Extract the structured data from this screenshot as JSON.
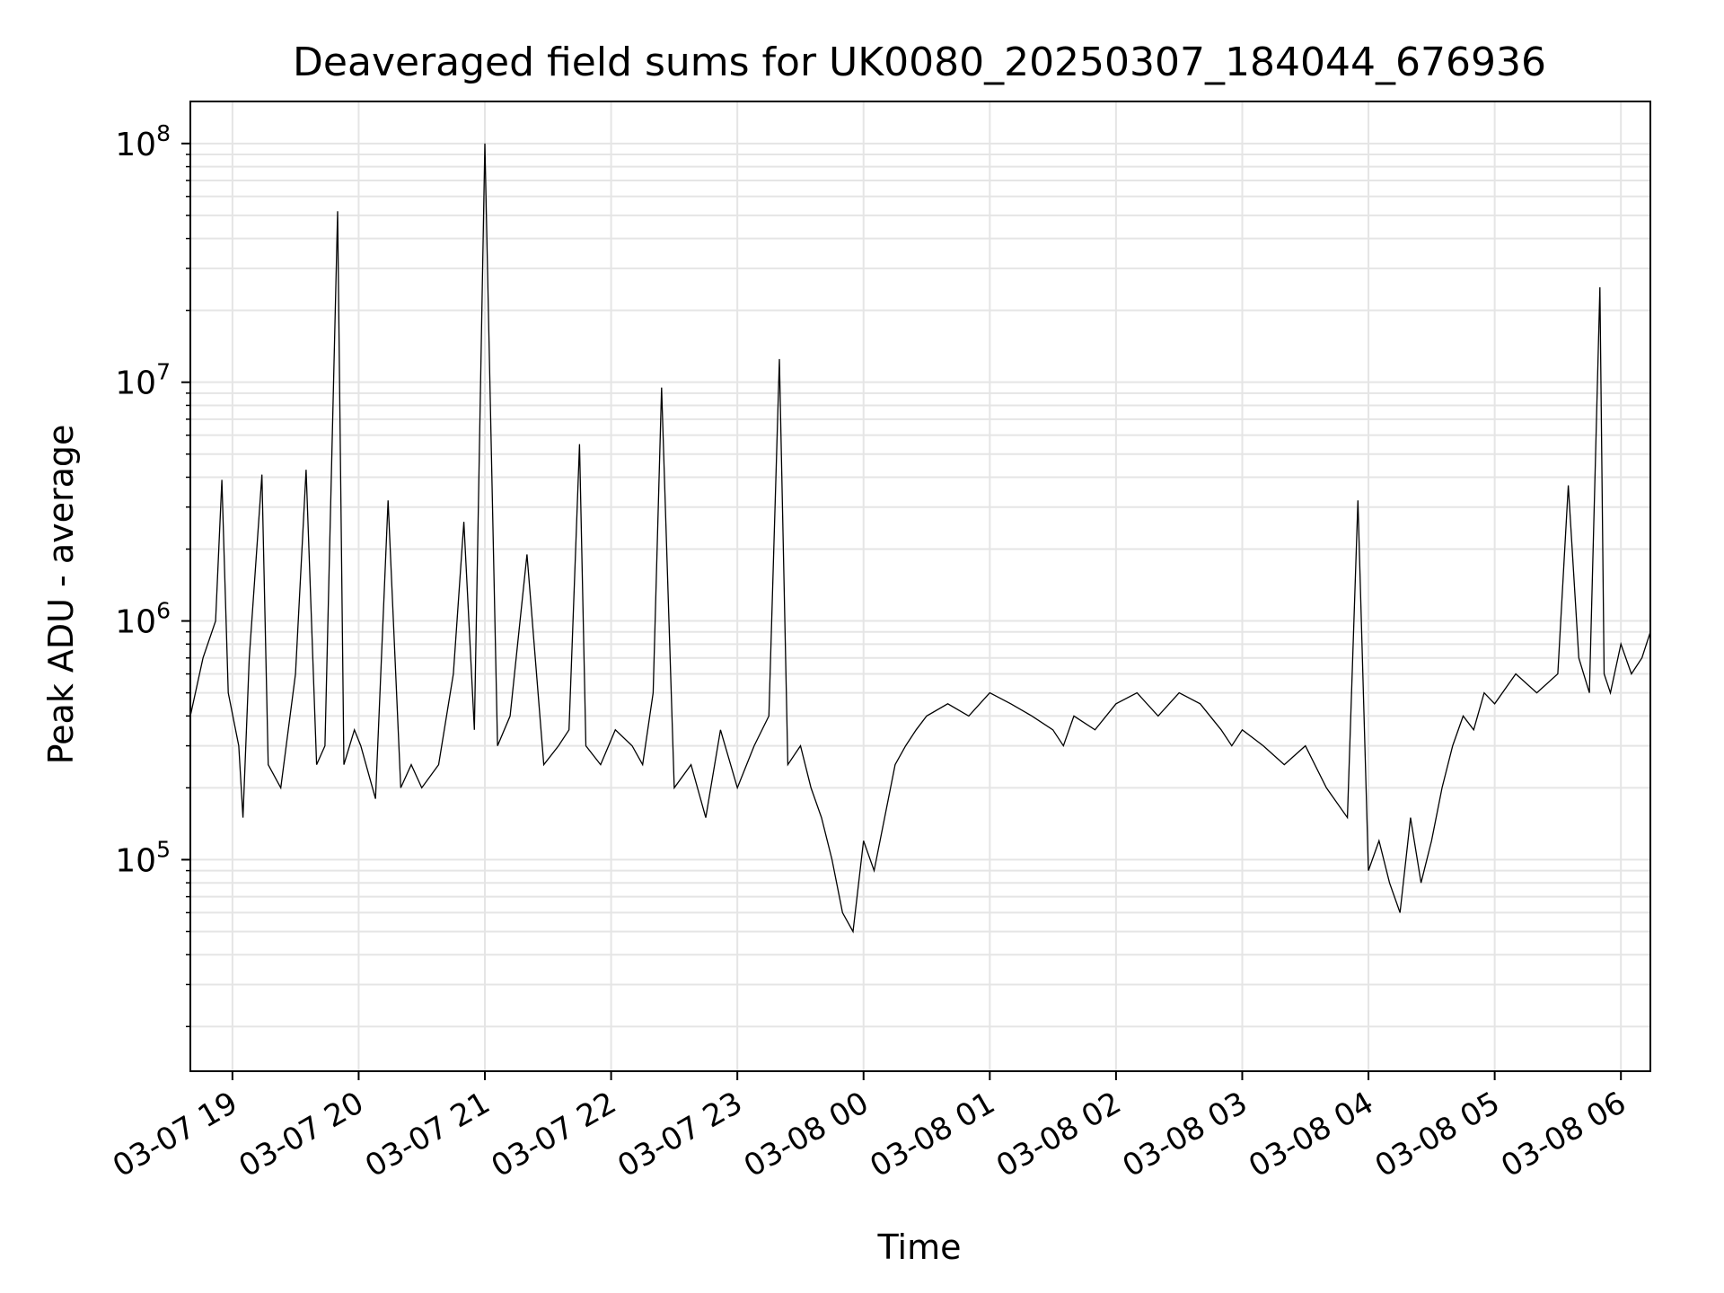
{
  "chart_data": {
    "type": "line",
    "title": "Deaveraged field sums for UK0080_20250307_184044_676936",
    "xlabel": "Time",
    "ylabel": "Peak ADU - average",
    "yscale": "log",
    "ylim": [
      13000,
      150000000
    ],
    "xlim": [
      "2025-03-07 18:40",
      "2025-03-08 06:14"
    ],
    "grid": true,
    "legend": "none",
    "colors": {
      "line": "#000000",
      "grid": "#e5e5e5",
      "axes": "#000000",
      "background": "#ffffff"
    },
    "x_ticks": [
      {
        "t": "2025-03-07 19:00",
        "label": "03-07 19"
      },
      {
        "t": "2025-03-07 20:00",
        "label": "03-07 20"
      },
      {
        "t": "2025-03-07 21:00",
        "label": "03-07 21"
      },
      {
        "t": "2025-03-07 22:00",
        "label": "03-07 22"
      },
      {
        "t": "2025-03-07 23:00",
        "label": "03-07 23"
      },
      {
        "t": "2025-03-08 00:00",
        "label": "03-08 00"
      },
      {
        "t": "2025-03-08 01:00",
        "label": "03-08 01"
      },
      {
        "t": "2025-03-08 02:00",
        "label": "03-08 02"
      },
      {
        "t": "2025-03-08 03:00",
        "label": "03-08 03"
      },
      {
        "t": "2025-03-08 04:00",
        "label": "03-08 04"
      },
      {
        "t": "2025-03-08 05:00",
        "label": "03-08 05"
      },
      {
        "t": "2025-03-08 06:00",
        "label": "03-08 06"
      }
    ],
    "y_ticks": [
      {
        "value": 100000,
        "base": "10",
        "exp": "5"
      },
      {
        "value": 1000000,
        "base": "10",
        "exp": "6"
      },
      {
        "value": 10000000,
        "base": "10",
        "exp": "7"
      },
      {
        "value": 100000000,
        "base": "10",
        "exp": "8"
      }
    ],
    "series": [
      {
        "x": [
          "2025-03-07 18:40",
          "2025-03-07 18:46",
          "2025-03-07 18:52",
          "2025-03-07 18:55",
          "2025-03-07 18:58",
          "2025-03-07 19:03",
          "2025-03-07 19:05",
          "2025-03-07 19:08",
          "2025-03-07 19:14",
          "2025-03-07 19:17",
          "2025-03-07 19:23",
          "2025-03-07 19:30",
          "2025-03-07 19:35",
          "2025-03-07 19:40",
          "2025-03-07 19:44",
          "2025-03-07 19:50",
          "2025-03-07 19:53",
          "2025-03-07 19:58",
          "2025-03-07 20:01",
          "2025-03-07 20:08",
          "2025-03-07 20:14",
          "2025-03-07 20:20",
          "2025-03-07 20:25",
          "2025-03-07 20:30",
          "2025-03-07 20:38",
          "2025-03-07 20:45",
          "2025-03-07 20:50",
          "2025-03-07 20:55",
          "2025-03-07 21:00",
          "2025-03-07 21:06",
          "2025-03-07 21:12",
          "2025-03-07 21:20",
          "2025-03-07 21:28",
          "2025-03-07 21:35",
          "2025-03-07 21:40",
          "2025-03-07 21:45",
          "2025-03-07 21:48",
          "2025-03-07 21:55",
          "2025-03-07 22:02",
          "2025-03-07 22:10",
          "2025-03-07 22:15",
          "2025-03-07 22:20",
          "2025-03-07 22:24",
          "2025-03-07 22:30",
          "2025-03-07 22:38",
          "2025-03-07 22:45",
          "2025-03-07 22:52",
          "2025-03-07 23:00",
          "2025-03-07 23:08",
          "2025-03-07 23:15",
          "2025-03-07 23:20",
          "2025-03-07 23:24",
          "2025-03-07 23:30",
          "2025-03-07 23:35",
          "2025-03-07 23:40",
          "2025-03-07 23:45",
          "2025-03-07 23:50",
          "2025-03-07 23:55",
          "2025-03-08 00:00",
          "2025-03-08 00:05",
          "2025-03-08 00:10",
          "2025-03-08 00:15",
          "2025-03-08 00:20",
          "2025-03-08 00:25",
          "2025-03-08 00:30",
          "2025-03-08 00:40",
          "2025-03-08 00:50",
          "2025-03-08 01:00",
          "2025-03-08 01:10",
          "2025-03-08 01:20",
          "2025-03-08 01:30",
          "2025-03-08 01:35",
          "2025-03-08 01:40",
          "2025-03-08 01:50",
          "2025-03-08 02:00",
          "2025-03-08 02:10",
          "2025-03-08 02:20",
          "2025-03-08 02:30",
          "2025-03-08 02:40",
          "2025-03-08 02:50",
          "2025-03-08 02:55",
          "2025-03-08 03:00",
          "2025-03-08 03:10",
          "2025-03-08 03:20",
          "2025-03-08 03:30",
          "2025-03-08 03:40",
          "2025-03-08 03:50",
          "2025-03-08 03:55",
          "2025-03-08 04:00",
          "2025-03-08 04:05",
          "2025-03-08 04:10",
          "2025-03-08 04:15",
          "2025-03-08 04:20",
          "2025-03-08 04:25",
          "2025-03-08 04:30",
          "2025-03-08 04:35",
          "2025-03-08 04:40",
          "2025-03-08 04:45",
          "2025-03-08 04:50",
          "2025-03-08 04:55",
          "2025-03-08 05:00",
          "2025-03-08 05:10",
          "2025-03-08 05:20",
          "2025-03-08 05:30",
          "2025-03-08 05:35",
          "2025-03-08 05:40",
          "2025-03-08 05:45",
          "2025-03-08 05:50",
          "2025-03-08 05:52",
          "2025-03-08 05:55",
          "2025-03-08 06:00",
          "2025-03-08 06:05",
          "2025-03-08 06:10",
          "2025-03-08 06:14"
        ],
        "values": [
          400000,
          700000,
          1000000,
          3900000,
          500000,
          300000,
          150000,
          700000,
          4100000,
          250000,
          200000,
          600000,
          4300000,
          250000,
          300000,
          52000000,
          250000,
          350000,
          300000,
          180000,
          3200000,
          200000,
          250000,
          200000,
          250000,
          600000,
          2600000,
          350000,
          100000000,
          300000,
          400000,
          1900000,
          250000,
          300000,
          350000,
          5500000,
          300000,
          250000,
          350000,
          300000,
          250000,
          500000,
          9500000,
          200000,
          250000,
          150000,
          350000,
          200000,
          300000,
          400000,
          12500000,
          250000,
          300000,
          200000,
          150000,
          100000,
          60000,
          50000,
          120000,
          90000,
          150000,
          250000,
          300000,
          350000,
          400000,
          450000,
          400000,
          500000,
          450000,
          400000,
          350000,
          300000,
          400000,
          350000,
          450000,
          500000,
          400000,
          500000,
          450000,
          350000,
          300000,
          350000,
          300000,
          250000,
          300000,
          200000,
          150000,
          3200000,
          90000,
          120000,
          80000,
          60000,
          150000,
          80000,
          120000,
          200000,
          300000,
          400000,
          350000,
          500000,
          450000,
          600000,
          500000,
          600000,
          3700000,
          700000,
          500000,
          25000000,
          600000,
          500000,
          800000,
          600000,
          700000,
          900000
        ]
      }
    ]
  }
}
